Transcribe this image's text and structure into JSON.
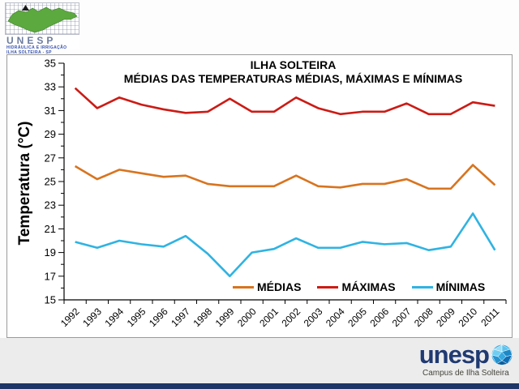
{
  "slide": {
    "header_logo": {
      "acronym": "UNESP",
      "subline1": "HIDRÁULICA E IRRIGAÇÃO",
      "subline2": "ILHA SOLTEIRA - SP",
      "map_color": "#5ca93f"
    },
    "footer": {
      "brand": "unesp",
      "brand_color": "#203a72",
      "campus_label": "Campus de Ilha Solteira",
      "bar_color": "#1d3667",
      "globe_colors": [
        "#9adcf5",
        "#35a8e0",
        "#0e6fb5"
      ]
    }
  },
  "chart_data": {
    "type": "line",
    "title": "ILHA SOLTEIRA",
    "subtitle": "MÉDIAS DAS TEMPERATURAS MÉDIAS, MÁXIMAS E MÍNIMAS",
    "ylabel": "Temperatura (°C)",
    "xlabel": "",
    "ylim": [
      15,
      35
    ],
    "ytick_major_step": 2,
    "ytick_minor_step": 1,
    "grid": false,
    "legend_position": "inside-bottom-right",
    "categories": [
      "1992",
      "1993",
      "1994",
      "1995",
      "1996",
      "1997",
      "1998",
      "1999",
      "2000",
      "2001",
      "2002",
      "2003",
      "2004",
      "2005",
      "2006",
      "2007",
      "2008",
      "2009",
      "2010",
      "2011"
    ],
    "series": [
      {
        "name": "MÉDIAS",
        "color": "#d8741f",
        "values": [
          26.3,
          25.2,
          26.0,
          25.7,
          25.4,
          25.5,
          24.8,
          24.6,
          24.6,
          24.6,
          25.5,
          24.6,
          24.5,
          24.8,
          24.8,
          25.2,
          24.4,
          24.4,
          26.4,
          24.7
        ]
      },
      {
        "name": "MÁXIMAS",
        "color": "#cc1b15",
        "values": [
          32.9,
          31.2,
          32.1,
          31.5,
          31.1,
          30.8,
          30.9,
          32.0,
          30.9,
          30.9,
          32.1,
          31.2,
          30.7,
          30.9,
          30.9,
          31.6,
          30.7,
          30.7,
          31.7,
          31.4
        ]
      },
      {
        "name": "MÍNIMAS",
        "color": "#2fb3e2",
        "values": [
          19.9,
          19.4,
          20.0,
          19.7,
          19.5,
          20.4,
          18.9,
          17.0,
          19.0,
          19.3,
          20.2,
          19.4,
          19.4,
          19.9,
          19.7,
          19.8,
          19.2,
          19.5,
          22.3,
          19.2
        ]
      }
    ]
  }
}
